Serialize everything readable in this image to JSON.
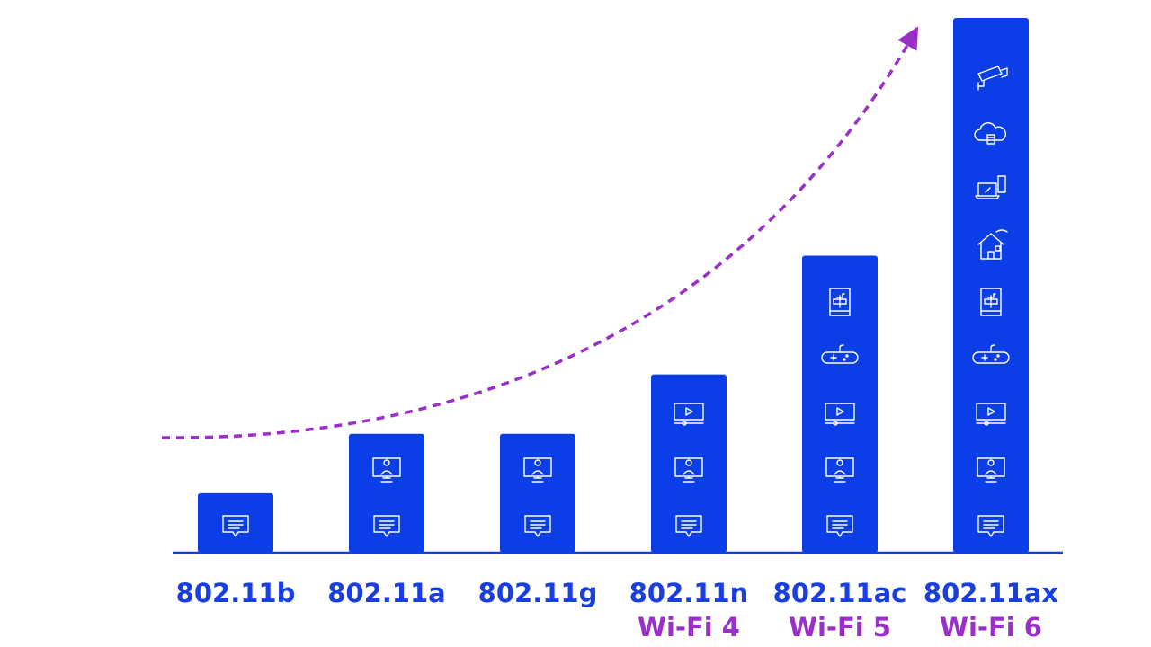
{
  "chart_data": {
    "type": "bar",
    "categories": [
      "802.11b",
      "802.11a",
      "802.11g",
      "802.11n",
      "802.11ac",
      "802.11ax"
    ],
    "generations": [
      null,
      null,
      null,
      "Wi-Fi 4",
      "Wi-Fi 5",
      "Wi-Fi 6"
    ],
    "values": [
      1,
      2,
      2,
      3,
      5,
      9
    ],
    "ylim": [
      0,
      9
    ],
    "color": "#0b3ee6",
    "label_color": "#1a3fe0",
    "generation_color": "#9a2fc9"
  }
}
